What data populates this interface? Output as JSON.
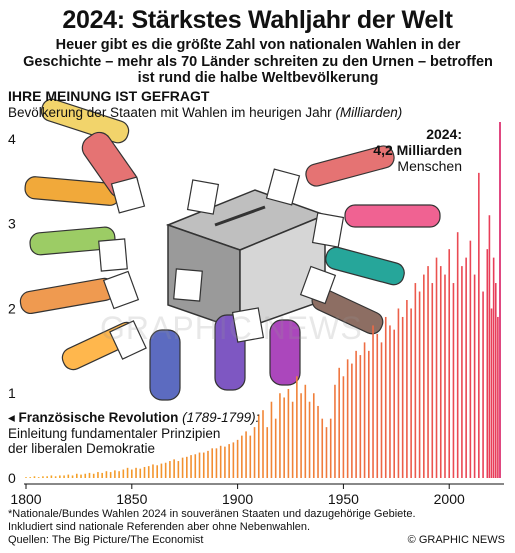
{
  "title": "2024: Stärkstes Wahljahr der Welt",
  "subtitle": "Heuer gibt es die größte Zahl von nationalen Wahlen in der Geschichte – mehr als 70 Länder schreiten zu den Urnen – betroffen ist rund die halbe Weltbevölkerung",
  "section_heading": "IHRE MEINUNG IST GEFRAGT",
  "description": "Bevölkerung der Staaten mit Wahlen im heurigen Jahr",
  "unit": "(Milliarden)",
  "callout": {
    "year": "2024:",
    "value": "4,2 Milliarden",
    "label": "Menschen"
  },
  "annotation": {
    "head": "Französische Revolution",
    "years": "(1789-1799):",
    "line1": "Einleitung fundamentaler Prinzipien",
    "line2": "der liberalen Demokratie"
  },
  "footnote": {
    "line1": "*Nationale/Bundes Wahlen 2024 in souveränen Staaten und dazugehörige Gebiete.",
    "line2": "Inkludiert sind nationale Referenden aber ohne Nebenwahlen.",
    "line3": "Quellen: The Big Picture/The Economist"
  },
  "brand": "© GRAPHIC NEWS",
  "watermark": "GRAPHIC NEWS",
  "colors": {
    "early": "#f5a623",
    "mid": "#f0803a",
    "late": "#e83a5a",
    "highlight": "#d81b60"
  },
  "illustration": "ballot-box-with-hands",
  "chart_data": {
    "type": "bar",
    "x_range": [
      1800,
      2024
    ],
    "y_range": [
      0,
      4.2
    ],
    "x_ticks": [
      1800,
      1850,
      1900,
      1950,
      2000
    ],
    "y_ticks": [
      0,
      1,
      2,
      3,
      4
    ],
    "grid": false,
    "x": [
      1800,
      1802,
      1804,
      1806,
      1808,
      1810,
      1812,
      1814,
      1816,
      1818,
      1820,
      1822,
      1824,
      1826,
      1828,
      1830,
      1832,
      1834,
      1836,
      1838,
      1840,
      1842,
      1844,
      1846,
      1848,
      1850,
      1852,
      1854,
      1856,
      1858,
      1860,
      1862,
      1864,
      1866,
      1868,
      1870,
      1872,
      1874,
      1876,
      1878,
      1880,
      1882,
      1884,
      1886,
      1888,
      1890,
      1892,
      1894,
      1896,
      1898,
      1900,
      1902,
      1904,
      1906,
      1908,
      1910,
      1912,
      1914,
      1916,
      1918,
      1920,
      1922,
      1924,
      1926,
      1928,
      1930,
      1932,
      1934,
      1936,
      1938,
      1940,
      1942,
      1944,
      1946,
      1948,
      1950,
      1952,
      1954,
      1956,
      1958,
      1960,
      1962,
      1964,
      1966,
      1968,
      1970,
      1972,
      1974,
      1976,
      1978,
      1980,
      1982,
      1984,
      1986,
      1988,
      1990,
      1992,
      1994,
      1996,
      1998,
      2000,
      2002,
      2004,
      2006,
      2008,
      2010,
      2012,
      2014,
      2016,
      2018,
      2019,
      2020,
      2021,
      2022,
      2023,
      2024
    ],
    "values": [
      0.01,
      0.01,
      0.02,
      0.01,
      0.02,
      0.02,
      0.03,
      0.02,
      0.03,
      0.03,
      0.04,
      0.03,
      0.05,
      0.04,
      0.05,
      0.06,
      0.05,
      0.07,
      0.06,
      0.08,
      0.07,
      0.09,
      0.08,
      0.1,
      0.12,
      0.1,
      0.12,
      0.11,
      0.13,
      0.14,
      0.16,
      0.15,
      0.17,
      0.18,
      0.2,
      0.22,
      0.2,
      0.24,
      0.25,
      0.27,
      0.28,
      0.3,
      0.3,
      0.32,
      0.35,
      0.35,
      0.38,
      0.37,
      0.4,
      0.42,
      0.45,
      0.5,
      0.55,
      0.5,
      0.6,
      0.75,
      0.8,
      0.6,
      0.9,
      0.7,
      1.0,
      0.95,
      1.05,
      0.9,
      1.2,
      1.0,
      1.1,
      0.9,
      1.0,
      0.85,
      0.7,
      0.6,
      0.7,
      1.1,
      1.3,
      1.2,
      1.4,
      1.35,
      1.5,
      1.45,
      1.6,
      1.5,
      1.8,
      1.7,
      1.6,
      1.9,
      1.8,
      1.75,
      2.0,
      1.9,
      2.1,
      2.0,
      2.3,
      2.2,
      2.4,
      2.5,
      2.3,
      2.6,
      2.5,
      2.4,
      2.7,
      2.3,
      2.9,
      2.5,
      2.6,
      2.8,
      2.4,
      3.6,
      2.2,
      2.7,
      3.1,
      2.0,
      2.6,
      2.3,
      1.9,
      4.2
    ]
  }
}
